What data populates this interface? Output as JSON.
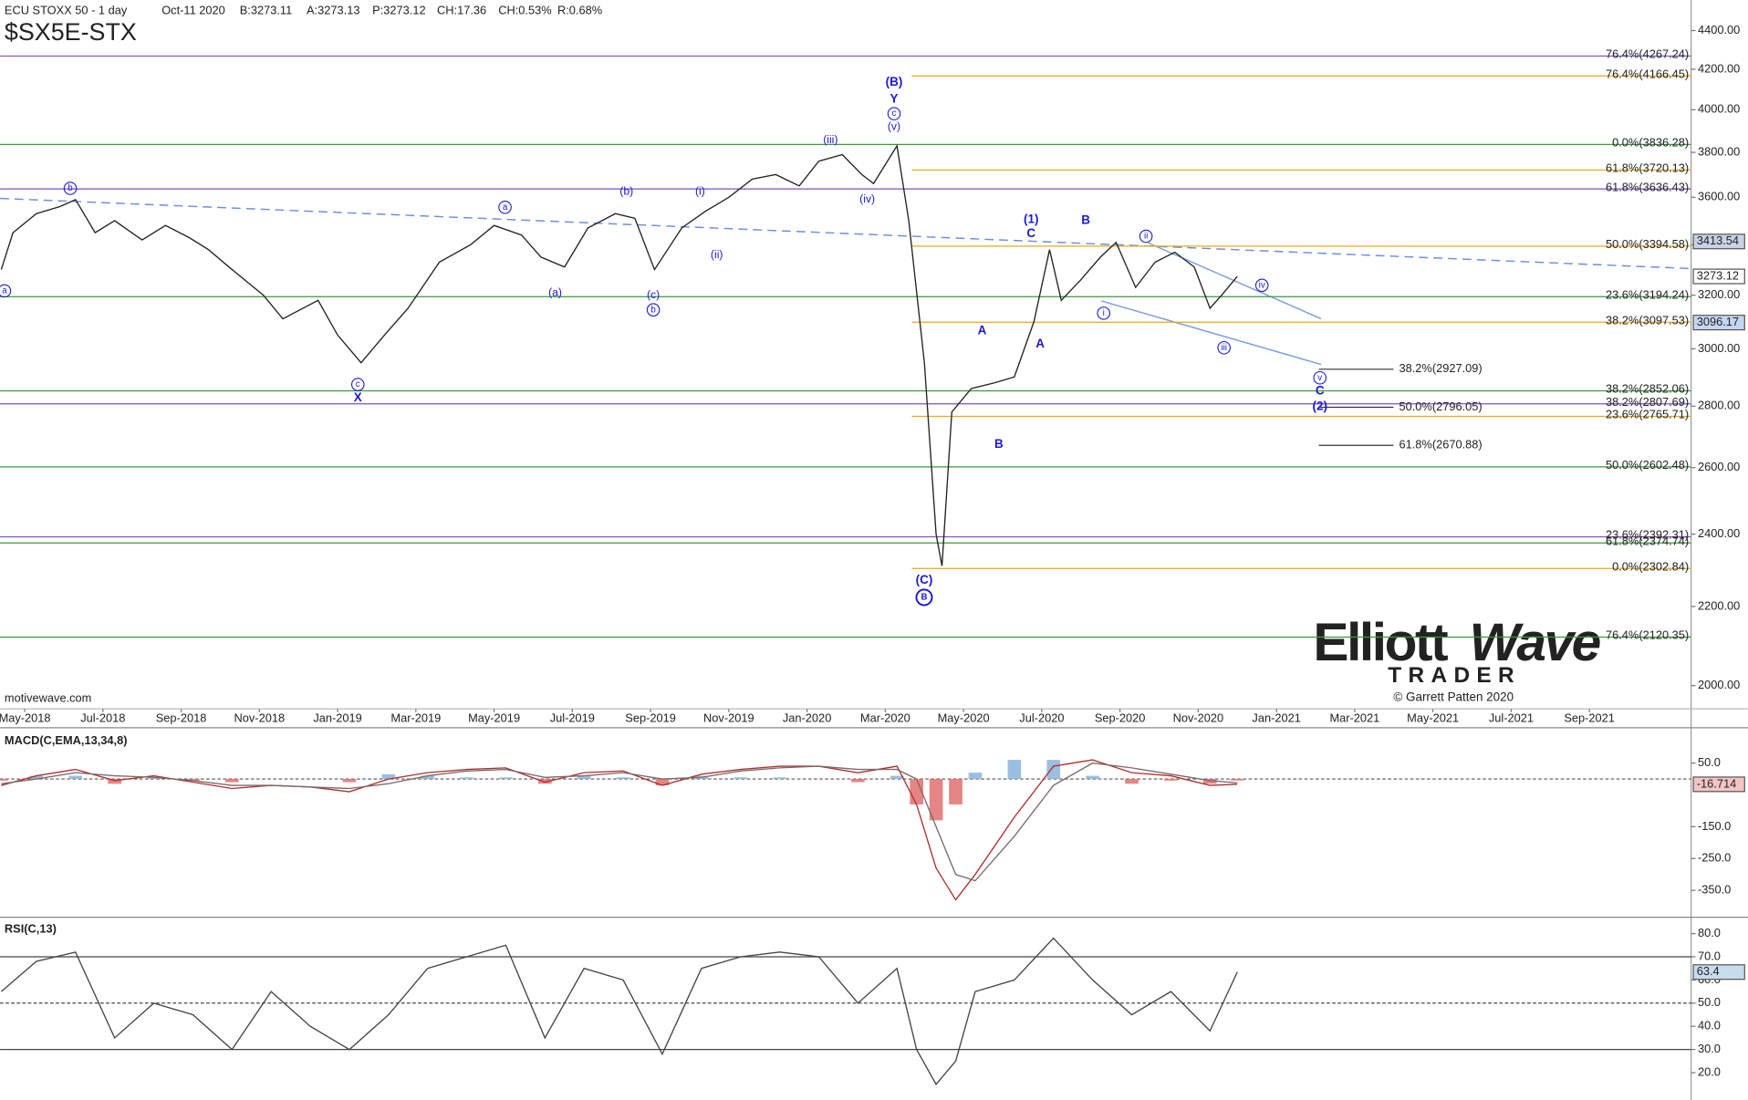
{
  "chart_data": [
    {
      "type": "line",
      "title": "ECU STOXX 50 - 1 day",
      "subtitle": "$SX5E-STX",
      "quote": [
        {
          "text": "Oct-11 2020",
          "color": "#888888"
        },
        {
          "text": "B:3273.11",
          "color": "#888888"
        },
        {
          "text": "A:3273.13",
          "color": "#888888"
        },
        {
          "text": "P:3273.12",
          "color": "#888888"
        },
        {
          "text": "CH:17.36",
          "color": "#22aa22"
        },
        {
          "text": "CH:0.53%",
          "color": "#22aa22"
        },
        {
          "text": "R:0.68%",
          "color": "#e08a00"
        }
      ],
      "log_scale": true,
      "xlim": [
        -0.63,
        42.6
      ],
      "xticks": [
        {
          "value": 0,
          "label": "May-2018"
        },
        {
          "value": 2,
          "label": "Jul-2018"
        },
        {
          "value": 4,
          "label": "Sep-2018"
        },
        {
          "value": 6,
          "label": "Nov-2018"
        },
        {
          "value": 8,
          "label": "Jan-2019"
        },
        {
          "value": 10,
          "label": "Mar-2019"
        },
        {
          "value": 12,
          "label": "May-2019"
        },
        {
          "value": 14,
          "label": "Jul-2019"
        },
        {
          "value": 16,
          "label": "Sep-2019"
        },
        {
          "value": 18,
          "label": "Nov-2019"
        },
        {
          "value": 20,
          "label": "Jan-2020"
        },
        {
          "value": 22,
          "label": "Mar-2020"
        },
        {
          "value": 24,
          "label": "May-2020"
        },
        {
          "value": 26,
          "label": "Jul-2020"
        },
        {
          "value": 28,
          "label": "Sep-2020"
        },
        {
          "value": 30,
          "label": "Nov-2020"
        },
        {
          "value": 32,
          "label": "Jan-2021"
        },
        {
          "value": 34,
          "label": "Mar-2021"
        },
        {
          "value": 36,
          "label": "May-2021"
        },
        {
          "value": 38,
          "label": "Jul-2021"
        },
        {
          "value": 40,
          "label": "Sep-2021"
        }
      ],
      "ylim": [
        1945,
        4565
      ],
      "yticks": [
        {
          "value": 2000,
          "label": "2000.00"
        },
        {
          "value": 2200,
          "label": "2200.00"
        },
        {
          "value": 2400,
          "label": "2400.00"
        },
        {
          "value": 2600,
          "label": "2600.00"
        },
        {
          "value": 2800,
          "label": "2800.00"
        },
        {
          "value": 3000,
          "label": "3000.00"
        },
        {
          "value": 3200,
          "label": "3200.00"
        },
        {
          "value": 3400,
          "label": "3400.00"
        },
        {
          "value": 3600,
          "label": "3600.00"
        },
        {
          "value": 3800,
          "label": "3800.00"
        },
        {
          "value": 4000,
          "label": "4000.00"
        },
        {
          "value": 4200,
          "label": "4200.00"
        },
        {
          "value": 4400,
          "label": "4400.00"
        }
      ],
      "x": [
        -0.6,
        -0.3,
        0.3,
        0.9,
        1.3,
        1.8,
        2.3,
        3.0,
        3.6,
        4.2,
        4.7,
        5.3,
        6.1,
        6.6,
        7.5,
        8.0,
        8.6,
        9.2,
        9.8,
        10.6,
        11.4,
        12.0,
        12.7,
        13.2,
        13.8,
        14.4,
        15.1,
        15.6,
        16.1,
        16.8,
        17.4,
        18.0,
        18.6,
        19.2,
        19.8,
        20.3,
        20.9,
        21.4,
        21.7,
        22.3,
        22.6,
        23.0,
        23.3,
        23.45,
        23.7,
        24.2,
        24.8,
        25.3,
        25.8,
        26.2,
        26.5,
        27.0,
        27.5,
        27.9,
        28.4,
        28.9,
        29.4,
        29.9,
        30.3,
        30.6,
        31.0
      ],
      "series": [
        {
          "color": "#222222",
          "values": [
            3300,
            3450,
            3530,
            3560,
            3590,
            3450,
            3500,
            3420,
            3480,
            3430,
            3380,
            3300,
            3200,
            3110,
            3180,
            3050,
            2950,
            3050,
            3150,
            3330,
            3400,
            3480,
            3440,
            3350,
            3310,
            3470,
            3530,
            3510,
            3300,
            3470,
            3540,
            3600,
            3680,
            3700,
            3650,
            3760,
            3790,
            3700,
            3660,
            3830,
            3500,
            2950,
            2400,
            2310,
            2780,
            2860,
            2880,
            2900,
            3100,
            3380,
            3180,
            3260,
            3350,
            3410,
            3230,
            3330,
            3370,
            3310,
            3150,
            3200,
            3273.12
          ]
        }
      ],
      "price_markers": [
        {
          "value": 3413.54,
          "color": "#c9d3e6"
        },
        {
          "value": 3273.12,
          "color": "#ffffff"
        },
        {
          "value": 3096.17,
          "color": "#c5d6f2"
        }
      ],
      "fib_levels": [
        {
          "color": "#7b4fc9",
          "levels": [
            {
              "label": "76.4%(4267.24)",
              "value": 4267.24
            },
            {
              "label": "61.8%(3636.43)",
              "value": 3636.43
            },
            {
              "label": "38.2%(2807.69)",
              "value": 2807.69
            },
            {
              "label": "23.6%(2392.31)",
              "value": 2392.31
            }
          ]
        },
        {
          "color": "#3a9a3a",
          "levels": [
            {
              "label": "0.0%(3836.28)",
              "value": 3836.28
            },
            {
              "label": "23.6%(3194.24)",
              "value": 3194.24
            },
            {
              "label": "38.2%(2852.06)",
              "value": 2852.06
            },
            {
              "label": "50.0%(2602.48)",
              "value": 2602.48
            },
            {
              "label": "61.8%(2374.74)",
              "value": 2374.74
            },
            {
              "label": "76.4%(2120.35)",
              "value": 2120.35
            }
          ]
        },
        {
          "color": "#e8aa10",
          "levels": [
            {
              "label": "76.4%(4166.45)",
              "value": 4166.45
            },
            {
              "label": "61.8%(3720.13)",
              "value": 3720.13
            },
            {
              "label": "50.0%(3394.58)",
              "value": 3394.58
            },
            {
              "label": "38.2%(3097.53)",
              "value": 3097.53
            },
            {
              "label": "23.6%(2765.71)",
              "value": 2765.71
            },
            {
              "label": "0.0%(2302.84)",
              "value": 2302.84
            }
          ]
        },
        {
          "color": "#333333",
          "levels": [
            {
              "label": "38.2%(2927.09)",
              "value": 2927.09
            },
            {
              "label": "50.0%(2796.05)",
              "value": 2796.05
            },
            {
              "label": "61.8%(2670.88)",
              "value": 2670.88
            }
          ]
        }
      ],
      "annotations": [
        "b",
        "a",
        "c",
        "X",
        "a",
        "(a)",
        "(b)",
        "(c)",
        "b",
        "(i)",
        "(ii)",
        "(iii)",
        "(iv)",
        "(v)",
        "c",
        "Y",
        "(B)",
        "(C)",
        "B",
        "A",
        "B",
        "(1)",
        "C",
        "A",
        "B",
        "i",
        "ii",
        "iii",
        "iv",
        "v",
        "C",
        "(2)"
      ]
    },
    {
      "type": "macd",
      "title": "MACD(C,EMA,13,34,8)",
      "xlim": [
        -0.63,
        42.6
      ],
      "ylim": [
        -431,
        154
      ],
      "yticks": [
        {
          "value": 50,
          "label": "50.0"
        },
        {
          "value": -150,
          "label": "-150.0"
        },
        {
          "value": -250,
          "label": "-250.0"
        },
        {
          "value": -350,
          "label": "-350.0"
        }
      ],
      "x": [
        -0.6,
        0.3,
        1.3,
        2.3,
        3.3,
        4.3,
        5.3,
        6.3,
        7.3,
        8.3,
        9.3,
        10.3,
        11.3,
        12.3,
        13.3,
        14.3,
        15.3,
        16.3,
        17.3,
        18.3,
        19.3,
        20.3,
        21.3,
        22.3,
        22.8,
        23.3,
        23.8,
        24.3,
        25.3,
        26.3,
        27.3,
        28.3,
        29.3,
        30.3,
        31.0
      ],
      "series": [
        {
          "color": "#b03030",
          "values": [
            -20,
            10,
            30,
            -5,
            10,
            -10,
            -30,
            -20,
            -25,
            -40,
            0,
            20,
            30,
            35,
            -10,
            20,
            25,
            -20,
            15,
            30,
            40,
            40,
            20,
            40,
            -80,
            -280,
            -380,
            -300,
            -120,
            40,
            60,
            20,
            10,
            -20,
            -16.714
          ]
        },
        {
          "color": "#7a6a6a",
          "values": [
            -15,
            0,
            20,
            10,
            5,
            -5,
            -20,
            -20,
            -25,
            -30,
            -15,
            10,
            25,
            30,
            5,
            10,
            20,
            0,
            5,
            25,
            35,
            40,
            30,
            30,
            0,
            -150,
            -300,
            -320,
            -180,
            -20,
            50,
            35,
            15,
            -5,
            -12
          ]
        }
      ],
      "histogram": {
        "colors": [
          "#8ab4dc",
          "#e07070"
        ],
        "values": [
          -5,
          10,
          10,
          -15,
          5,
          -5,
          -10,
          0,
          0,
          -10,
          15,
          10,
          5,
          5,
          -15,
          10,
          5,
          -20,
          10,
          5,
          5,
          0,
          -10,
          10,
          -80,
          -130,
          -80,
          20,
          60,
          60,
          10,
          -15,
          -5,
          -15,
          -4.714
        ]
      },
      "marker_color": "#f4c4c4"
    },
    {
      "type": "line",
      "title": "RSI(C,13)",
      "xlim": [
        -0.63,
        42.6
      ],
      "ylim": [
        8.2,
        86.1
      ],
      "yticks": [
        {
          "value": 80,
          "label": "80.0"
        },
        {
          "value": 70,
          "label": "70.0"
        },
        {
          "value": 60,
          "label": "60.0"
        },
        {
          "value": 50,
          "label": "50.0"
        },
        {
          "value": 40,
          "label": "40.0"
        },
        {
          "value": 30,
          "label": "30.0"
        },
        {
          "value": 20,
          "label": "20.0"
        }
      ],
      "levels": [
        70,
        50,
        30
      ],
      "x": [
        -0.6,
        0.3,
        1.3,
        2.3,
        3.3,
        4.3,
        5.3,
        6.3,
        7.3,
        8.3,
        9.3,
        10.3,
        11.3,
        12.3,
        13.3,
        14.3,
        15.3,
        16.3,
        17.3,
        18.3,
        19.3,
        20.3,
        21.3,
        22.3,
        22.8,
        23.3,
        23.8,
        24.3,
        25.3,
        26.3,
        27.3,
        28.3,
        29.3,
        30.3,
        31.0
      ],
      "series": [
        {
          "color": "#444444",
          "values": [
            55,
            68,
            72,
            35,
            50,
            45,
            30,
            55,
            40,
            30,
            45,
            65,
            70,
            75,
            35,
            65,
            60,
            28,
            65,
            70,
            72,
            70,
            50,
            65,
            30,
            15,
            25,
            55,
            60,
            78,
            60,
            45,
            55,
            38,
            63.4
          ]
        }
      ],
      "marker_color": "#c8dcf0"
    }
  ],
  "branding": {
    "source": "motivewave.com",
    "logo": [
      "Elliott",
      "Wave"
    ],
    "logo_sub": "TRADER",
    "copyright": "© Garrett Patten 2020"
  }
}
